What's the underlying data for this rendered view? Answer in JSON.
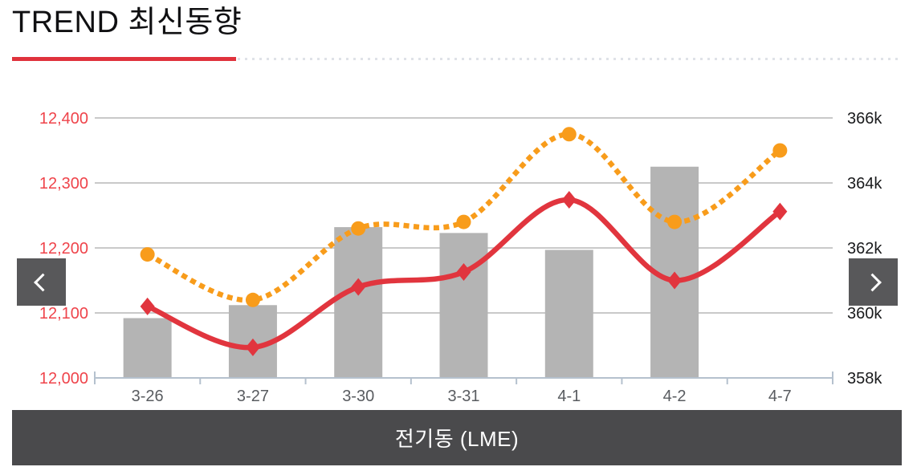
{
  "header": {
    "title": "TREND 최신동향",
    "underline_color": "#e0323c",
    "dotted_color": "#dfe2e8"
  },
  "nav": {
    "prev_icon": "chevron-left",
    "next_icon": "chevron-right",
    "button_bg": "#58585a"
  },
  "footer": {
    "label": "전기동 (LME)",
    "bg": "#4a4a4c",
    "text_color": "#ffffff"
  },
  "chart_data": {
    "type": "combo",
    "categories": [
      "3-26",
      "3-27",
      "3-30",
      "3-31",
      "4-1",
      "4-2",
      "4-7"
    ],
    "series": [
      {
        "name": "bars",
        "type": "bar",
        "axis": "left",
        "color": "#b4b4b4",
        "values": [
          12092,
          12112,
          12232,
          12223,
          12197,
          12325,
          null
        ]
      },
      {
        "name": "red-line",
        "type": "line",
        "axis": "left",
        "color": "#e1353e",
        "marker": "diamond",
        "dash": "solid",
        "values": [
          12110,
          12047,
          12140,
          12163,
          12274,
          12150,
          12256
        ]
      },
      {
        "name": "orange-dotted-line",
        "type": "line",
        "axis": "right",
        "color": "#f89c1b",
        "marker": "circle",
        "dash": "dotted",
        "values": [
          361.8,
          360.4,
          362.6,
          362.8,
          365.5,
          362.8,
          365.0
        ]
      }
    ],
    "left_axis": {
      "min": 12000,
      "max": 12400,
      "step": 100,
      "tick_labels": [
        "12,400",
        "12,300",
        "12,200",
        "12,100",
        "12,000"
      ],
      "label_color": "#ef444b"
    },
    "right_axis": {
      "min": 358,
      "max": 366,
      "step": 2,
      "tick_labels": [
        "366k",
        "364k",
        "362k",
        "360k",
        "358k"
      ],
      "label_color": "#1a1b1d"
    },
    "grid": true,
    "legend": "none",
    "gridline_color": "#c9c9c9",
    "axisline_color": "#b5c1ce",
    "x_label_color": "#595c60"
  }
}
